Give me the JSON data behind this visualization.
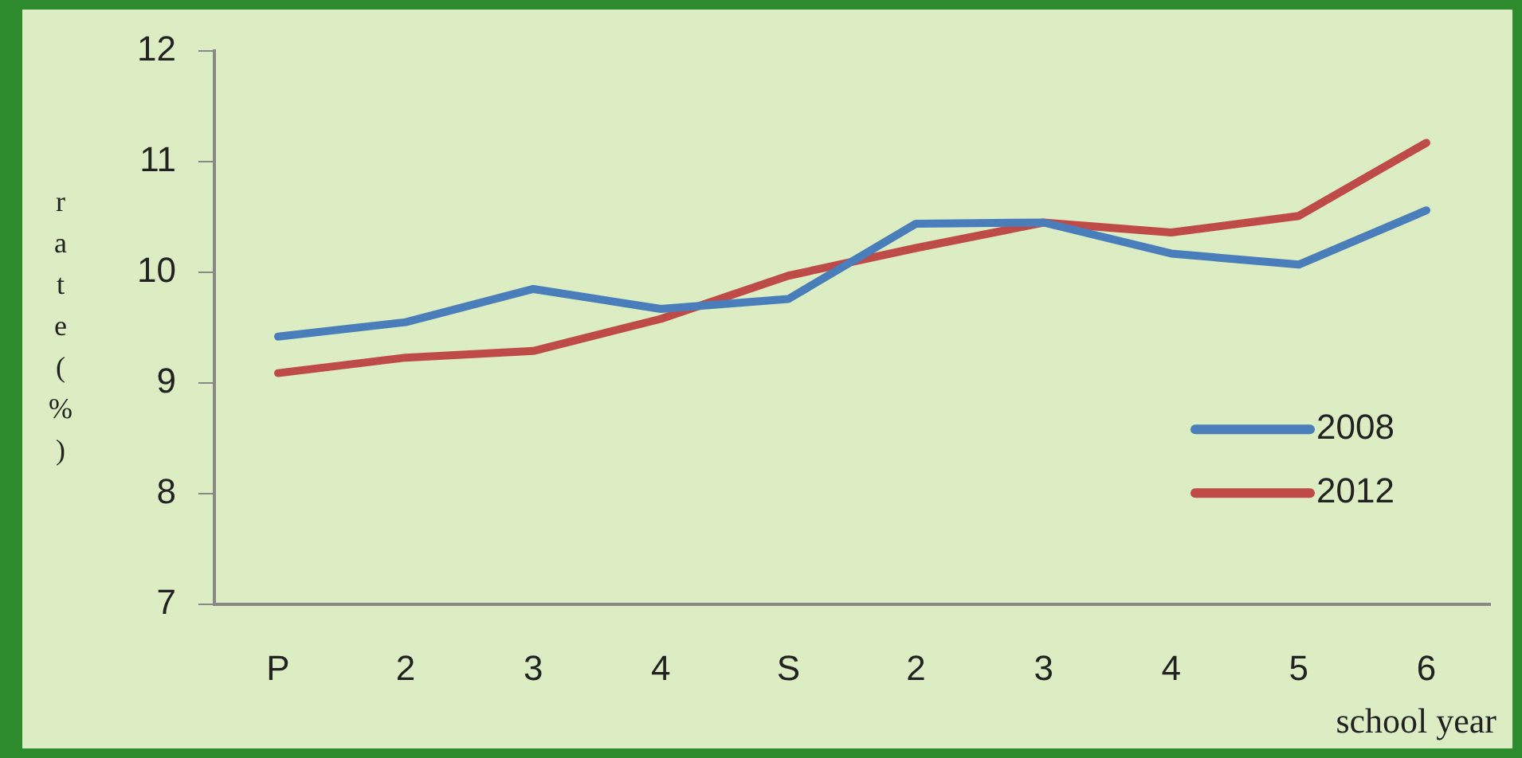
{
  "chart_data": {
    "type": "line",
    "ylabel": "rate(%)",
    "xlabel": "school year",
    "categories": [
      "P",
      "2",
      "3",
      "4",
      "S",
      "2",
      "3",
      "4",
      "5",
      "6"
    ],
    "series": [
      {
        "name": "2008",
        "color": "#4a7ebb",
        "values": [
          9.42,
          9.55,
          9.85,
          9.67,
          9.76,
          10.44,
          10.45,
          10.17,
          10.07,
          10.56
        ]
      },
      {
        "name": "2012",
        "color": "#be4b48",
        "values": [
          9.09,
          9.23,
          9.29,
          9.58,
          9.97,
          10.22,
          10.45,
          10.36,
          10.51,
          11.17
        ]
      }
    ],
    "ylim": [
      7,
      12
    ],
    "yticks": [
      7,
      8,
      9,
      10,
      11,
      12
    ],
    "grid": false,
    "legend": "right",
    "marker": "none",
    "line_style": "solid"
  }
}
